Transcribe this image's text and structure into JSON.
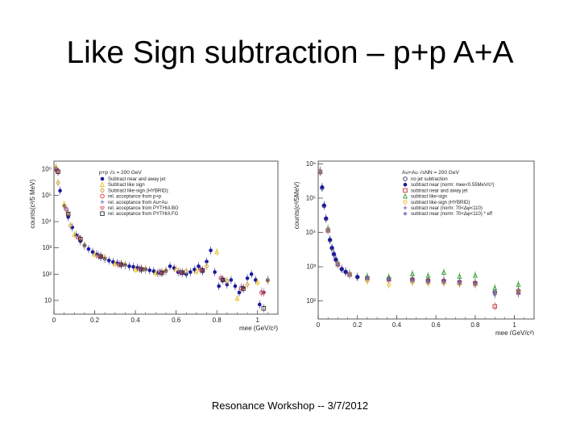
{
  "slide": {
    "title": "Like Sign subtraction – p+p A+A",
    "footer": "Resonance Workshop -- 3/7/2012"
  },
  "chart_data": [
    {
      "type": "scatter",
      "panel": "p+p",
      "ylabel": "counts(c²/5 MeV)",
      "xlabel": "mee (GeV/c²)",
      "xlim": [
        0,
        1.1
      ],
      "ylog": true,
      "ylim": [
        3,
        2000000
      ],
      "x_ticks": [
        "0",
        "0.2",
        "0.4",
        "0.6",
        "0.8",
        "1"
      ],
      "y_ticks": [
        "10",
        "10²",
        "10³",
        "10⁴",
        "10⁵",
        "10⁶"
      ],
      "grid": false,
      "legend_position": "top-left",
      "legend_header": "p+p √s = 200 GeV",
      "series": [
        {
          "name": "Subtract near and away jet",
          "color": "#1a1aa0",
          "marker": "filled-circle",
          "x": [
            0.01,
            0.03,
            0.05,
            0.07,
            0.09,
            0.11,
            0.13,
            0.15,
            0.17,
            0.19,
            0.21,
            0.23,
            0.25,
            0.27,
            0.29,
            0.31,
            0.33,
            0.35,
            0.37,
            0.39,
            0.41,
            0.43,
            0.45,
            0.47,
            0.49,
            0.51,
            0.53,
            0.55,
            0.57,
            0.59,
            0.61,
            0.63,
            0.65,
            0.67,
            0.69,
            0.71,
            0.73,
            0.75,
            0.77,
            0.79,
            0.81,
            0.83,
            0.85,
            0.87,
            0.89,
            0.91,
            0.93,
            0.95,
            0.97,
            0.99,
            1.01,
            1.03,
            1.05
          ],
          "y": [
            1000000,
            150000,
            40000,
            15000,
            6000,
            3000,
            1800,
            1200,
            900,
            700,
            560,
            450,
            380,
            330,
            290,
            260,
            240,
            220,
            200,
            190,
            175,
            160,
            150,
            140,
            130,
            110,
            115,
            130,
            200,
            170,
            120,
            110,
            100,
            120,
            150,
            200,
            130,
            300,
            800,
            120,
            35,
            60,
            40,
            60,
            35,
            20,
            30,
            70,
            100,
            60,
            7,
            20,
            60
          ]
        },
        {
          "name": "Subtract like sign",
          "color": "#e8c020",
          "marker": "open-triangle",
          "x": [
            0.01,
            0.05,
            0.1,
            0.2,
            0.3,
            0.4,
            0.5,
            0.6,
            0.7,
            0.8,
            0.9,
            1.0
          ],
          "y": [
            1200000,
            45000,
            3200,
            560,
            250,
            150,
            110,
            160,
            130,
            700,
            12,
            50
          ]
        },
        {
          "name": "Subtract like-sign (HYBRID):",
          "color": "#c8a040",
          "marker": "open-diamond",
          "x": [
            0.02,
            0.08,
            0.15,
            0.25,
            0.35,
            0.45,
            0.55,
            0.65,
            0.75,
            0.85,
            0.95,
            1.05
          ],
          "y": [
            300000,
            7000,
            1300,
            420,
            230,
            160,
            140,
            130,
            200,
            55,
            40,
            55
          ]
        },
        {
          "name": "rel. acceptance from p+p",
          "color": "#e03030",
          "marker": "open-circle",
          "x": [
            0.01,
            0.06,
            0.12,
            0.22,
            0.32,
            0.42,
            0.52,
            0.62,
            0.72,
            0.82,
            0.92,
            1.02
          ],
          "y": [
            950000,
            30000,
            2500,
            500,
            240,
            160,
            120,
            120,
            150,
            70,
            30,
            20
          ]
        },
        {
          "name": "rel. acceptance from Au+Au",
          "color": "#7a7ad0",
          "marker": "cross",
          "x": [
            0.01,
            0.06,
            0.12,
            0.22,
            0.32,
            0.42,
            0.52,
            0.62,
            0.72,
            0.82,
            0.92,
            1.02
          ],
          "y": [
            980000,
            31000,
            2600,
            510,
            245,
            158,
            118,
            122,
            148,
            68,
            32,
            22
          ]
        },
        {
          "name": "rel. acceptance from PYTHIA BG",
          "color": "#e05050",
          "marker": "open-heart",
          "x": [
            0.02,
            0.07,
            0.13,
            0.23,
            0.33,
            0.43,
            0.53,
            0.63,
            0.73,
            0.83,
            0.93,
            1.03
          ],
          "y": [
            800000,
            20000,
            2200,
            480,
            235,
            155,
            115,
            118,
            140,
            65,
            30,
            20
          ]
        },
        {
          "name": "rel. acceptance from PYTHIA FG",
          "color": "#303030",
          "marker": "open-square",
          "x": [
            0.02,
            0.07,
            0.13,
            0.23,
            0.33,
            0.43,
            0.53,
            0.63,
            0.73,
            0.83,
            0.93,
            1.03
          ],
          "y": [
            790000,
            19500,
            2150,
            470,
            230,
            152,
            112,
            115,
            138,
            60,
            28,
            5
          ]
        }
      ]
    },
    {
      "type": "scatter",
      "panel": "Au+Au",
      "ylabel": "counts(c²/5MeV)",
      "xlabel": "mee (GeV/c²)",
      "xlim": [
        0,
        1.1
      ],
      "ylog": true,
      "ylim": [
        30,
        1200000
      ],
      "x_ticks": [
        "0",
        "0.2",
        "0.4",
        "0.6",
        "0.8",
        "1"
      ],
      "y_ticks": [
        "10²",
        "10³",
        "10⁴",
        "10⁵",
        "10⁶"
      ],
      "grid": false,
      "legend_position": "top-right",
      "legend_header": "Au+Au √sNN = 200 GeV",
      "series": [
        {
          "name": "no jet subtraction",
          "color": "#303060",
          "marker": "open-circle",
          "x": [
            0.01,
            0.02,
            0.03,
            0.04,
            0.05,
            0.06,
            0.07,
            0.08,
            0.09,
            0.1,
            0.12,
            0.14,
            0.16,
            0.2,
            0.25,
            0.36,
            0.48,
            0.56,
            0.64,
            0.72,
            0.8,
            0.9,
            1.02
          ],
          "y": [
            600000,
            200000,
            60000,
            25000,
            12000,
            6000,
            3500,
            2300,
            1600,
            1200,
            850,
            700,
            600,
            500,
            470,
            450,
            430,
            400,
            390,
            360,
            340,
            180,
            200
          ]
        },
        {
          "name": "subtract near (norm: mee<0.55MeV/c²)",
          "color": "#1a1aa0",
          "marker": "filled-circle",
          "x": [
            0.01,
            0.02,
            0.03,
            0.04,
            0.05,
            0.06,
            0.07,
            0.08,
            0.09,
            0.1,
            0.12,
            0.14,
            0.16,
            0.2,
            0.25,
            0.36,
            0.48,
            0.56,
            0.64,
            0.72,
            0.8,
            0.9,
            1.02
          ],
          "y": [
            620000,
            210000,
            62000,
            26000,
            12500,
            6200,
            3600,
            2400,
            1650,
            1250,
            870,
            720,
            610,
            510,
            480,
            440,
            420,
            390,
            380,
            350,
            330,
            170,
            190
          ]
        },
        {
          "name": "subtract near and away jet",
          "color": "#c03030",
          "marker": "open-square",
          "x": [
            0.01,
            0.05,
            0.1,
            0.16,
            0.25,
            0.36,
            0.48,
            0.56,
            0.64,
            0.72,
            0.8,
            0.9,
            1.02
          ],
          "y": [
            580000,
            11500,
            1180,
            590,
            460,
            430,
            410,
            380,
            370,
            340,
            320,
            70,
            180
          ]
        },
        {
          "name": "subtract like-sign",
          "color": "#30a030",
          "marker": "open-triangle",
          "x": [
            0.01,
            0.05,
            0.1,
            0.16,
            0.25,
            0.36,
            0.48,
            0.56,
            0.64,
            0.72,
            0.8,
            0.9,
            1.02
          ],
          "y": [
            640000,
            13000,
            1300,
            640,
            520,
            500,
            620,
            540,
            680,
            520,
            560,
            240,
            300
          ]
        },
        {
          "name": "subtract like-sign (HYBRID)",
          "color": "#e8c020",
          "marker": "open-diamond",
          "x": [
            0.01,
            0.05,
            0.1,
            0.16,
            0.25,
            0.36,
            0.48,
            0.56,
            0.64,
            0.72,
            0.8,
            0.9,
            1.02
          ],
          "y": [
            610000,
            12000,
            1220,
            600,
            380,
            300,
            350,
            330,
            340,
            320,
            300,
            160,
            180
          ]
        },
        {
          "name": "subtract near (norm: 70<Δφ<110)",
          "color": "#8060b0",
          "marker": "cross",
          "x": [
            0.01,
            0.05,
            0.1,
            0.16,
            0.25,
            0.36,
            0.48,
            0.56,
            0.64,
            0.72,
            0.8,
            0.9,
            1.02
          ],
          "y": [
            600000,
            11800,
            1200,
            600,
            470,
            440,
            410,
            380,
            370,
            350,
            320,
            160,
            170
          ]
        },
        {
          "name": "subtract near (norm: 70<Δφ<110) * eff",
          "color": "#7070c0",
          "marker": "star",
          "x": [
            0.01,
            0.05,
            0.1,
            0.16,
            0.25,
            0.36,
            0.48,
            0.56,
            0.64,
            0.72,
            0.8,
            0.9,
            1.02
          ],
          "y": [
            590000,
            11700,
            1190,
            590,
            465,
            435,
            405,
            375,
            365,
            345,
            315,
            155,
            165
          ]
        }
      ]
    }
  ]
}
